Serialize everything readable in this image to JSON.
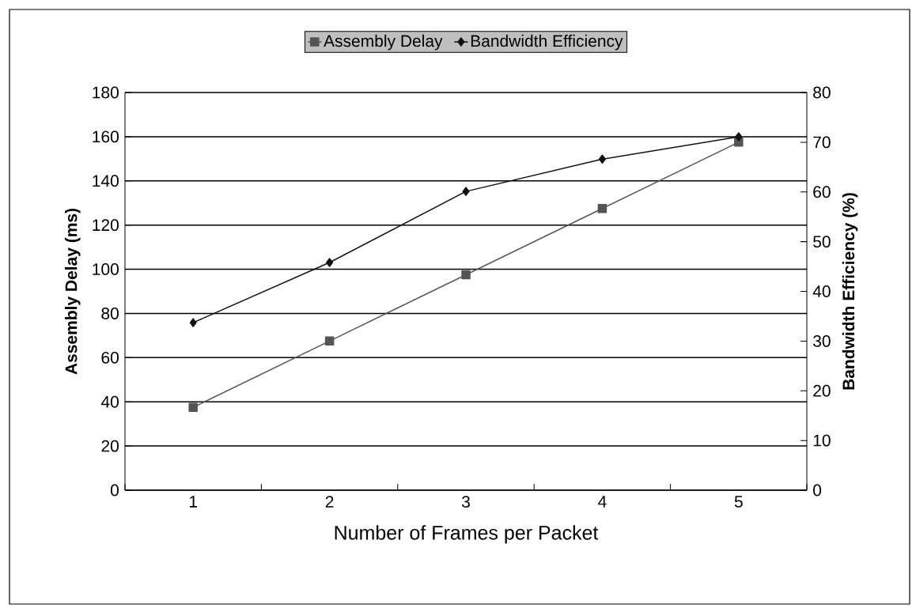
{
  "chart_data": {
    "type": "line",
    "xlabel": "Number of Frames per Packet",
    "ylabel": "Assembly Delay (ms)",
    "y2label": "Bandwidth Efficiency (%)",
    "categories": [
      "1",
      "2",
      "3",
      "4",
      "5"
    ],
    "series": [
      {
        "name": "Assembly Delay",
        "color": "#555555",
        "marker": "square",
        "values": [
          37.5,
          67.5,
          97.5,
          127.5,
          157.5
        ]
      },
      {
        "name": "Bandwidth Efficiency",
        "color": "#111111",
        "marker": "diamond",
        "axis": "y2",
        "values": [
          33.7,
          45.8,
          60.1,
          66.6,
          71.1
        ]
      }
    ],
    "ylim": [
      0,
      180
    ],
    "yticks": [
      0,
      20,
      40,
      60,
      80,
      100,
      120,
      140,
      160,
      180
    ],
    "y2lim": [
      0,
      80
    ],
    "y2ticks": [
      0,
      10,
      20,
      30,
      40,
      50,
      60,
      70,
      80
    ],
    "grid": "y",
    "legend": "top",
    "line_style": "solid"
  }
}
